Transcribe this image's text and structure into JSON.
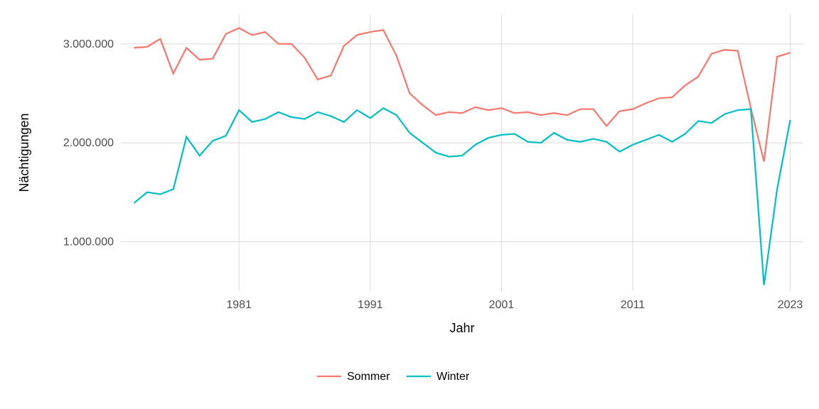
{
  "chart": {
    "type": "line",
    "background_color": "#ffffff",
    "panel_background": "#ffffff",
    "grid_color": "#d9d9d9",
    "xlabel": "Jahr",
    "ylabel": "Nächtigungen",
    "label_fontsize": 18,
    "tick_fontsize": 16,
    "tick_color": "#4d4d4d",
    "xlim": [
      1972,
      2024
    ],
    "ylim": [
      500000,
      3300000
    ],
    "x_ticks": [
      1981,
      1991,
      2001,
      2011,
      2023
    ],
    "x_tick_labels": [
      "1981",
      "1991",
      "2001",
      "2011",
      "2023"
    ],
    "y_ticks": [
      1000000,
      2000000,
      3000000
    ],
    "y_tick_labels": [
      "1.000.000",
      "2.000.000",
      "3.000.000"
    ],
    "line_width": 2.2,
    "legend": {
      "position": "bottom",
      "items": [
        {
          "label": "Sommer",
          "color": "#f8766d"
        },
        {
          "label": "Winter",
          "color": "#00bfc4"
        }
      ]
    },
    "series": [
      {
        "name": "Sommer",
        "color": "#f8766d",
        "x": [
          1973,
          1974,
          1975,
          1976,
          1977,
          1978,
          1979,
          1980,
          1981,
          1982,
          1983,
          1984,
          1985,
          1986,
          1987,
          1988,
          1989,
          1990,
          1991,
          1992,
          1993,
          1994,
          1995,
          1996,
          1997,
          1998,
          1999,
          2000,
          2001,
          2002,
          2003,
          2004,
          2005,
          2006,
          2007,
          2008,
          2009,
          2010,
          2011,
          2012,
          2013,
          2014,
          2015,
          2016,
          2017,
          2018,
          2019,
          2020,
          2021,
          2022,
          2023
        ],
        "y": [
          2960000,
          2970000,
          3050000,
          2700000,
          2960000,
          2840000,
          2850000,
          3100000,
          3160000,
          3090000,
          3120000,
          3000000,
          3000000,
          2860000,
          2640000,
          2680000,
          2980000,
          3090000,
          3120000,
          3140000,
          2880000,
          2500000,
          2380000,
          2280000,
          2310000,
          2300000,
          2360000,
          2330000,
          2350000,
          2300000,
          2310000,
          2280000,
          2300000,
          2280000,
          2340000,
          2340000,
          2170000,
          2320000,
          2340000,
          2400000,
          2450000,
          2460000,
          2580000,
          2670000,
          2900000,
          2940000,
          2930000,
          2350000,
          1810000,
          2870000,
          2910000
        ]
      },
      {
        "name": "Winter",
        "color": "#00bfc4",
        "x": [
          1973,
          1974,
          1975,
          1976,
          1977,
          1978,
          1979,
          1980,
          1981,
          1982,
          1983,
          1984,
          1985,
          1986,
          1987,
          1988,
          1989,
          1990,
          1991,
          1992,
          1993,
          1994,
          1995,
          1996,
          1997,
          1998,
          1999,
          2000,
          2001,
          2002,
          2003,
          2004,
          2005,
          2006,
          2007,
          2008,
          2009,
          2010,
          2011,
          2012,
          2013,
          2014,
          2015,
          2016,
          2017,
          2018,
          2019,
          2020,
          2021,
          2022,
          2023
        ],
        "y": [
          1390000,
          1500000,
          1480000,
          1530000,
          2060000,
          1870000,
          2020000,
          2070000,
          2330000,
          2210000,
          2240000,
          2310000,
          2260000,
          2240000,
          2310000,
          2270000,
          2210000,
          2330000,
          2250000,
          2350000,
          2280000,
          2100000,
          2000000,
          1900000,
          1860000,
          1870000,
          1980000,
          2050000,
          2080000,
          2090000,
          2010000,
          2000000,
          2100000,
          2030000,
          2010000,
          2040000,
          2010000,
          1910000,
          1980000,
          2030000,
          2080000,
          2010000,
          2090000,
          2220000,
          2200000,
          2290000,
          2330000,
          2340000,
          560000,
          1530000,
          2230000
        ]
      }
    ]
  }
}
